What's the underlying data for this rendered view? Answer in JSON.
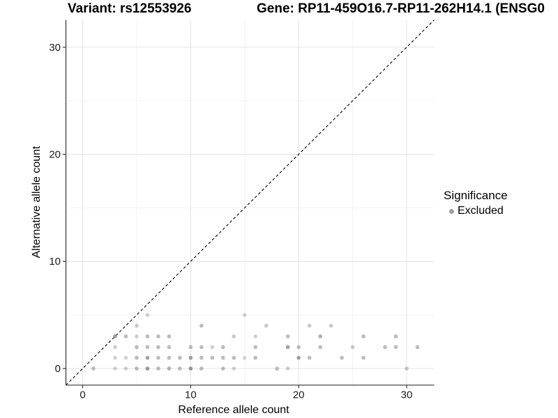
{
  "chart_data": {
    "type": "scatter",
    "title_left": "Variant: rs12553926",
    "title_right": "Gene: RP11-459O16.7-RP11-262H14.1 (ENSG0",
    "xlabel": "Reference allele count",
    "ylabel": "Alternative allele count",
    "xlim": [
      -1.55,
      32.55
    ],
    "ylim": [
      -1.55,
      32.55
    ],
    "xticks": [
      0,
      10,
      20,
      30
    ],
    "yticks": [
      0,
      10,
      20,
      30
    ],
    "xminor": [
      5,
      15,
      25
    ],
    "yminor": [
      5,
      15,
      25
    ],
    "grid": true,
    "legend_position": "right",
    "identity_line": {
      "style": "dashed",
      "color": "#000000",
      "from": -1.55,
      "to": 32.55
    },
    "colors": {
      "background": "#ffffff",
      "point": "#777777",
      "grid_major": "#e4e4e4",
      "grid_minor": "#f3f3f3",
      "axis": "#333333",
      "tick_label": "#1a1a1a",
      "legend_key": "#9e9e9e"
    },
    "legend": {
      "title": "Significance",
      "items": [
        {
          "label": "Excluded",
          "color": "#9e9e9e"
        }
      ]
    },
    "series": [
      {
        "name": "Excluded",
        "color": "#777777",
        "points": [
          [
            1,
            0,
            0.5
          ],
          [
            3,
            0,
            0.35
          ],
          [
            4,
            0,
            0.35
          ],
          [
            5,
            0,
            0.5
          ],
          [
            6,
            0,
            0.75
          ],
          [
            7,
            0,
            0.5
          ],
          [
            8,
            0,
            0.55
          ],
          [
            9,
            0,
            0.5
          ],
          [
            10,
            0,
            0.75
          ],
          [
            11,
            0,
            0.5
          ],
          [
            13,
            0,
            0.5
          ],
          [
            14,
            0,
            0.35
          ],
          [
            18,
            0,
            0.5
          ],
          [
            19,
            0,
            0.35
          ],
          [
            30,
            0,
            0.4
          ],
          [
            3,
            1,
            0.35
          ],
          [
            4,
            1,
            0.35
          ],
          [
            5,
            1,
            0.5
          ],
          [
            6,
            1,
            0.7
          ],
          [
            7,
            1,
            0.5
          ],
          [
            8,
            1,
            0.5
          ],
          [
            9,
            1,
            0.5
          ],
          [
            10,
            1,
            0.7
          ],
          [
            11,
            1,
            0.5
          ],
          [
            12,
            1,
            0.5
          ],
          [
            13,
            1,
            0.5
          ],
          [
            14,
            1,
            0.5
          ],
          [
            15,
            1,
            0.3
          ],
          [
            16,
            1,
            0.5
          ],
          [
            20,
            1,
            0.7
          ],
          [
            21,
            1,
            0.5
          ],
          [
            24,
            1,
            0.5
          ],
          [
            26,
            1,
            0.5
          ],
          [
            3,
            2,
            0.35
          ],
          [
            5,
            2,
            0.5
          ],
          [
            6,
            2,
            0.5
          ],
          [
            7,
            2,
            0.5
          ],
          [
            8,
            2,
            0.5
          ],
          [
            10,
            2,
            0.5
          ],
          [
            11,
            2,
            0.5
          ],
          [
            12,
            2,
            0.35
          ],
          [
            13,
            2,
            0.5
          ],
          [
            16,
            2,
            0.5
          ],
          [
            19,
            2,
            0.7
          ],
          [
            20,
            2,
            0.5
          ],
          [
            22,
            2,
            0.5
          ],
          [
            25,
            2,
            0.4
          ],
          [
            28,
            2,
            0.5
          ],
          [
            29,
            2,
            0.5
          ],
          [
            31,
            2,
            0.5
          ],
          [
            3,
            3,
            0.7
          ],
          [
            4,
            3,
            0.5
          ],
          [
            5,
            3,
            0.35
          ],
          [
            6,
            3,
            0.5
          ],
          [
            7,
            3,
            0.5
          ],
          [
            8,
            3,
            0.5
          ],
          [
            14,
            3,
            0.4
          ],
          [
            16,
            3,
            0.35
          ],
          [
            19,
            3,
            0.5
          ],
          [
            22,
            3,
            0.6
          ],
          [
            26,
            3,
            0.5
          ],
          [
            29,
            3,
            0.5
          ],
          [
            5,
            4,
            0.4
          ],
          [
            11,
            4,
            0.5
          ],
          [
            17,
            4,
            0.4
          ],
          [
            21,
            4,
            0.4
          ],
          [
            23,
            4,
            0.4
          ],
          [
            6,
            5,
            0.35
          ],
          [
            15,
            5,
            0.35
          ]
        ]
      }
    ]
  }
}
